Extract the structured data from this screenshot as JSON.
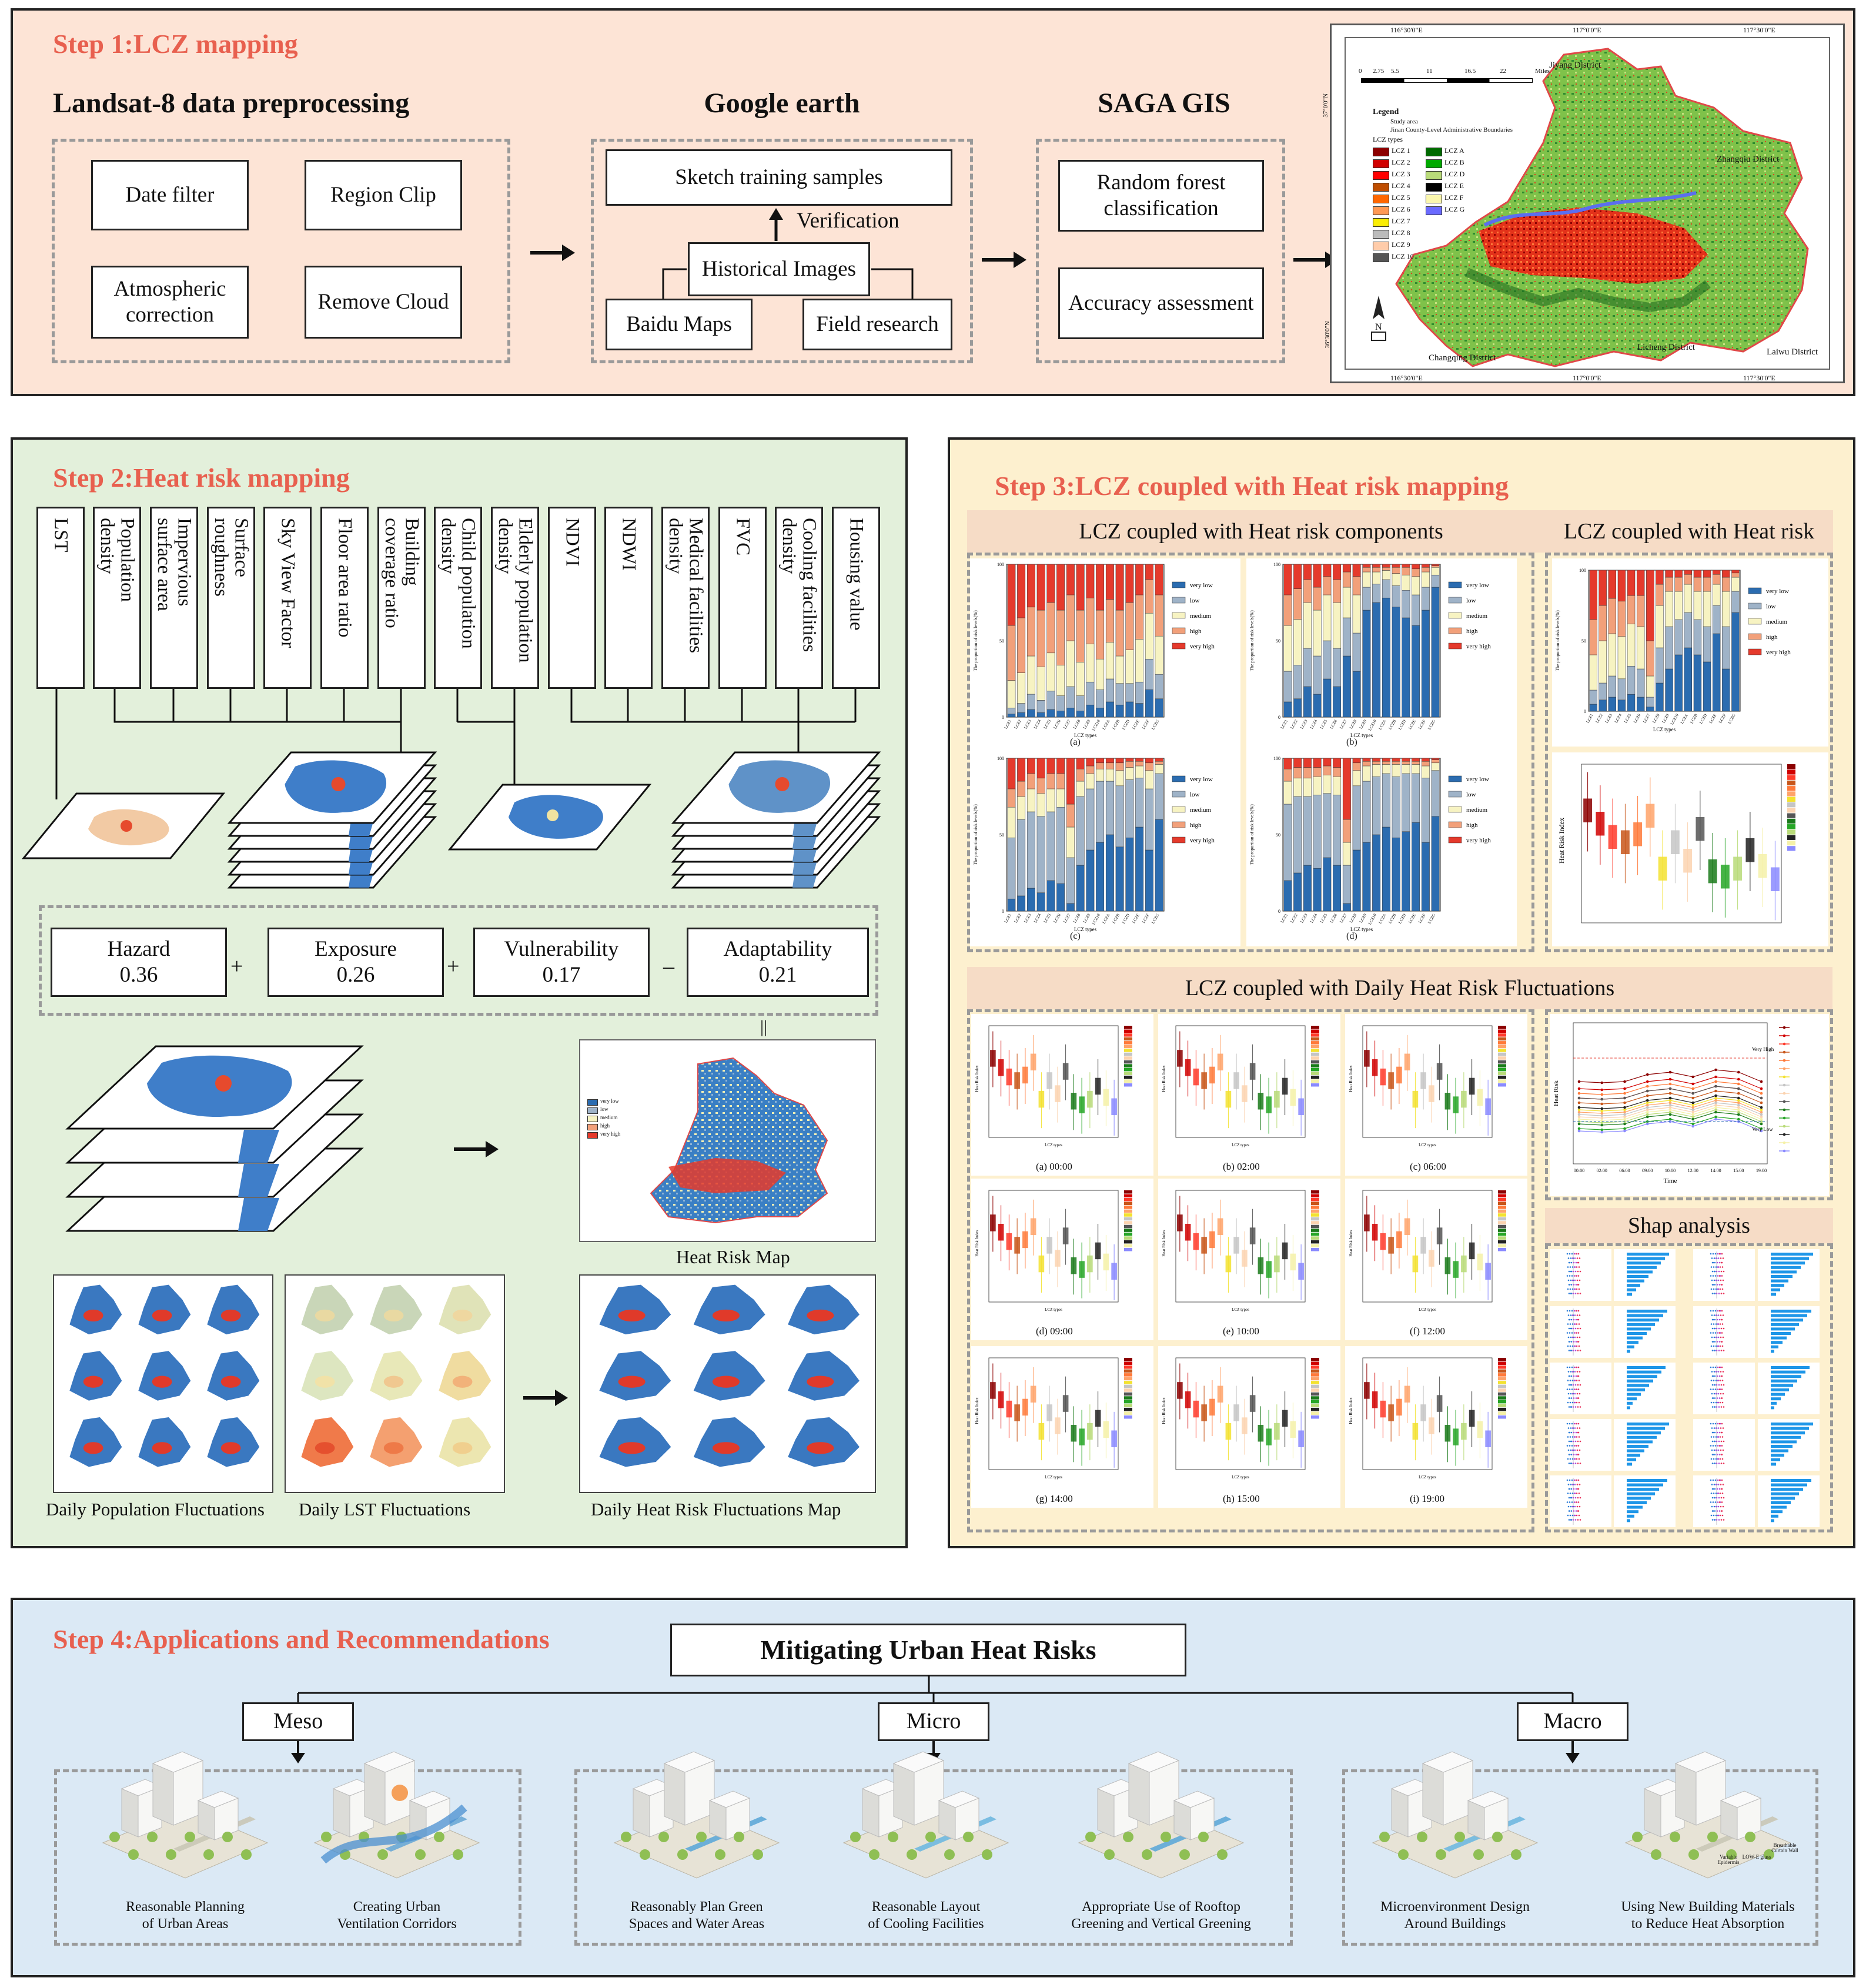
{
  "step1": {
    "title": "Step 1:LCZ mapping",
    "landsat": {
      "header": "Landsat-8 data preprocessing",
      "date_filter": "Date filter",
      "region_clip": "Region Clip",
      "atm": "Atmospheric correction",
      "cloud": "Remove Cloud"
    },
    "google": {
      "header": "Google earth",
      "sketch": "Sketch training samples",
      "verification": "Verification",
      "historical": "Historical Images",
      "baidu": "Baidu Maps",
      "field": "Field research"
    },
    "saga": {
      "header": "SAGA GIS",
      "rf": "Random forest classification",
      "accuracy": "Accuracy assessment"
    },
    "map": {
      "coords": [
        "116°30'0\"E",
        "117°0'0\"E",
        "117°30'0\"E"
      ],
      "coords_side": [
        "37°0'0\"N",
        "36°30'0\"N"
      ],
      "legend_title": "Legend",
      "legend_lines": [
        "Study area",
        "Jinan County-Level Administrative Boundaries"
      ],
      "lcz_title": "LCZ types",
      "lcz_left": [
        "LCZ 1",
        "LCZ 2",
        "LCZ 3",
        "LCZ 4",
        "LCZ 5",
        "LCZ 6",
        "LCZ 7",
        "LCZ 8",
        "LCZ 9",
        "LCZ 10"
      ],
      "lcz_right": [
        "LCZ A",
        "LCZ B",
        "LCZ D",
        "LCZ E",
        "LCZ F",
        "LCZ G"
      ],
      "lcz_left_colors": [
        "#8c0000",
        "#d10000",
        "#ff0000",
        "#bf4d00",
        "#ff6600",
        "#ff9955",
        "#faee05",
        "#bcbcbc",
        "#ffccaa",
        "#555555"
      ],
      "lcz_right_colors": [
        "#006a00",
        "#00aa00",
        "#b9db79",
        "#000000",
        "#fbf7ae",
        "#6a6aff"
      ],
      "districts": [
        "Jiyang District",
        "Zhangqiu District",
        "Licheng District",
        "Changqing District",
        "Laiwu District"
      ],
      "scale": [
        "0",
        "2.75",
        "5.5",
        "11",
        "16.5",
        "22"
      ],
      "scale_unit": "Miles"
    }
  },
  "step2": {
    "title": "Step 2:Heat risk mapping",
    "indicators": [
      "LST",
      "Population\ndensity",
      "Impervious\nsurface area",
      "Surface\nroughness",
      "Sky View Factor",
      "Floor area ratio",
      "Building\ncoverage ratio",
      "Child population\ndensity",
      "Elderly population\ndensity",
      "NDVI",
      "NDWI",
      "Medical facilities\ndensity",
      "FVC",
      "Cooling facilities\ndensity",
      "Housing value"
    ],
    "components": [
      {
        "name": "Hazard",
        "weight": "0.36"
      },
      {
        "name": "Exposure",
        "weight": "0.26"
      },
      {
        "name": "Vulnerability",
        "weight": "0.17"
      },
      {
        "name": "Adaptability",
        "weight": "0.21"
      }
    ],
    "ops": [
      "+",
      "+",
      "–"
    ],
    "equals": "||",
    "heat_risk_map": "Heat Risk Map",
    "pop_fluct": "Daily Population Fluctuations",
    "lst_fluct": "Daily LST Fluctuations",
    "heat_fluct": "Daily Heat Risk Fluctuations Map"
  },
  "step3": {
    "title": "Step 3:LCZ coupled with Heat risk mapping",
    "comp_header": "LCZ coupled with Heat risk components",
    "risk_header": "LCZ coupled with Heat risk",
    "daily_header": "LCZ coupled with  Daily Heat Risk Fluctuations",
    "shap_header": "Shap analysis",
    "legend_levels": [
      "very low",
      "low",
      "medium",
      "high",
      "very high"
    ],
    "level_colors": [
      "#2b6cb0",
      "#9fb3c8",
      "#f7f3c2",
      "#f2a07a",
      "#e53a2c"
    ],
    "ylabel": "The proportion of risk levels(%)",
    "xlabel": "LCZ types",
    "panel_caps": [
      "(a)",
      "(b)",
      "(c)",
      "(d)"
    ],
    "daily_caps": [
      "(a) 00:00",
      "(b) 02:00",
      "(c) 06:00",
      "(d) 09:00",
      "(e) 10:00",
      "(f) 12:00",
      "(g) 14:00",
      "(h) 15:00",
      "(i) 19:00"
    ],
    "box_ylabel": "Heat Risk Index",
    "line_ylabel": "Heat Risk",
    "line_xlabel": "Time",
    "very_high": "Very High",
    "very_low": "Very Low",
    "time_ticks": [
      "00:00",
      "02:00",
      "06:00",
      "09:00",
      "10:00",
      "12:00",
      "14:00",
      "15:00",
      "19:00"
    ]
  },
  "chart_data": [
    {
      "type": "bar",
      "title": "(a)",
      "stacked": true,
      "xlabel": "LCZ types",
      "ylabel": "The proportion of risk levels(%)",
      "ylim": [
        0,
        100
      ],
      "categories": [
        "LCZ1",
        "LCZ2",
        "LCZ3",
        "LCZ4",
        "LCZ5",
        "LCZ6",
        "LCZ7",
        "LCZ8",
        "LCZ9",
        "LCZ10",
        "LCZA",
        "LCZB",
        "LCZD",
        "LCZE",
        "LCZF",
        "LCZG"
      ],
      "series": [
        {
          "name": "very low",
          "values": [
            2,
            3,
            5,
            3,
            5,
            4,
            6,
            4,
            8,
            6,
            10,
            8,
            10,
            9,
            18,
            12
          ]
        },
        {
          "name": "low",
          "values": [
            4,
            6,
            10,
            8,
            12,
            10,
            14,
            10,
            15,
            12,
            15,
            14,
            12,
            14,
            20,
            16
          ]
        },
        {
          "name": "medium",
          "values": [
            18,
            20,
            25,
            22,
            25,
            20,
            30,
            22,
            25,
            20,
            24,
            18,
            22,
            28,
            30,
            25
          ]
        },
        {
          "name": "high",
          "values": [
            36,
            36,
            32,
            37,
            33,
            36,
            30,
            34,
            30,
            32,
            28,
            30,
            31,
            29,
            22,
            27
          ]
        },
        {
          "name": "very high",
          "values": [
            40,
            35,
            28,
            30,
            25,
            30,
            20,
            30,
            22,
            30,
            23,
            30,
            25,
            20,
            10,
            20
          ]
        }
      ]
    },
    {
      "type": "bar",
      "title": "(b)",
      "stacked": true,
      "xlabel": "LCZ types",
      "ylabel": "The proportion of risk levels(%)",
      "ylim": [
        0,
        100
      ],
      "categories": [
        "LCZ1",
        "LCZ2",
        "LCZ3",
        "LCZ4",
        "LCZ5",
        "LCZ6",
        "LCZ7",
        "LCZ8",
        "LCZ9",
        "LCZ10",
        "LCZA",
        "LCZB",
        "LCZD",
        "LCZE",
        "LCZF",
        "LCZG"
      ],
      "series": [
        {
          "name": "very low",
          "values": [
            10,
            12,
            20,
            15,
            25,
            20,
            40,
            30,
            70,
            75,
            78,
            72,
            65,
            60,
            70,
            85
          ]
        },
        {
          "name": "low",
          "values": [
            20,
            22,
            25,
            25,
            25,
            25,
            25,
            25,
            15,
            12,
            12,
            14,
            18,
            20,
            15,
            8
          ]
        },
        {
          "name": "medium",
          "values": [
            30,
            30,
            30,
            30,
            30,
            30,
            20,
            25,
            10,
            8,
            6,
            8,
            10,
            12,
            10,
            5
          ]
        },
        {
          "name": "high",
          "values": [
            20,
            20,
            15,
            15,
            12,
            15,
            10,
            12,
            3,
            3,
            2,
            4,
            5,
            5,
            3,
            1
          ]
        },
        {
          "name": "very high",
          "values": [
            20,
            16,
            10,
            15,
            8,
            10,
            5,
            8,
            2,
            2,
            2,
            2,
            2,
            3,
            2,
            1
          ]
        }
      ]
    },
    {
      "type": "bar",
      "title": "(c)",
      "stacked": true,
      "xlabel": "LCZ types",
      "ylabel": "The proportion of risk levels(%)",
      "ylim": [
        0,
        100
      ],
      "categories": [
        "LCZ1",
        "LCZ2",
        "LCZ3",
        "LCZ4",
        "LCZ5",
        "LCZ6",
        "LCZ7",
        "LCZ8",
        "LCZ9",
        "LCZ10",
        "LCZA",
        "LCZB",
        "LCZD",
        "LCZE",
        "LCZF",
        "LCZG"
      ],
      "series": [
        {
          "name": "very low",
          "values": [
            8,
            10,
            15,
            12,
            20,
            18,
            5,
            30,
            40,
            45,
            50,
            42,
            48,
            55,
            40,
            60
          ]
        },
        {
          "name": "low",
          "values": [
            40,
            50,
            50,
            50,
            45,
            50,
            30,
            45,
            40,
            40,
            35,
            40,
            38,
            32,
            40,
            30
          ]
        },
        {
          "name": "medium",
          "values": [
            20,
            15,
            15,
            15,
            15,
            12,
            20,
            10,
            10,
            8,
            8,
            10,
            8,
            8,
            12,
            6
          ]
        },
        {
          "name": "high",
          "values": [
            12,
            10,
            10,
            10,
            10,
            10,
            15,
            8,
            5,
            4,
            4,
            5,
            4,
            3,
            5,
            2
          ]
        },
        {
          "name": "very high",
          "values": [
            20,
            15,
            10,
            13,
            10,
            10,
            30,
            7,
            5,
            3,
            3,
            3,
            2,
            2,
            3,
            2
          ]
        }
      ]
    },
    {
      "type": "bar",
      "title": "(d)",
      "stacked": true,
      "xlabel": "LCZ types",
      "ylabel": "The proportion of risk levels(%)",
      "ylim": [
        0,
        100
      ],
      "categories": [
        "LCZ1",
        "LCZ2",
        "LCZ3",
        "LCZ4",
        "LCZ5",
        "LCZ6",
        "LCZ7",
        "LCZ8",
        "LCZ9",
        "LCZ10",
        "LCZA",
        "LCZB",
        "LCZD",
        "LCZE",
        "LCZF",
        "LCZG"
      ],
      "series": [
        {
          "name": "very low",
          "values": [
            20,
            25,
            30,
            28,
            35,
            30,
            5,
            40,
            45,
            50,
            55,
            48,
            52,
            58,
            45,
            62
          ]
        },
        {
          "name": "low",
          "values": [
            50,
            50,
            45,
            48,
            42,
            46,
            25,
            42,
            40,
            38,
            35,
            40,
            38,
            32,
            42,
            30
          ]
        },
        {
          "name": "medium",
          "values": [
            15,
            12,
            12,
            12,
            12,
            12,
            15,
            10,
            10,
            8,
            6,
            8,
            6,
            6,
            8,
            5
          ]
        },
        {
          "name": "high",
          "values": [
            8,
            7,
            7,
            6,
            6,
            6,
            15,
            5,
            3,
            2,
            2,
            2,
            2,
            2,
            3,
            2
          ]
        },
        {
          "name": "very high",
          "values": [
            7,
            6,
            6,
            6,
            5,
            6,
            40,
            3,
            2,
            2,
            2,
            2,
            2,
            2,
            2,
            1
          ]
        }
      ]
    },
    {
      "type": "bar",
      "title": "LCZ coupled with Heat risk",
      "stacked": true,
      "xlabel": "LCZ types",
      "ylabel": "The proportion of risk levels(%)",
      "ylim": [
        0,
        100
      ],
      "categories": [
        "LCZ1",
        "LCZ2",
        "LCZ3",
        "LCZ4",
        "LCZ5",
        "LCZ6",
        "LCZ7",
        "LCZ8",
        "LCZ9",
        "LCZ10",
        "LCZA",
        "LCZB",
        "LCZD",
        "LCZE",
        "LCZF",
        "LCZG"
      ],
      "series": [
        {
          "name": "very low",
          "values": [
            5,
            8,
            10,
            8,
            12,
            10,
            3,
            20,
            30,
            40,
            45,
            40,
            35,
            55,
            30,
            70
          ]
        },
        {
          "name": "low",
          "values": [
            10,
            12,
            15,
            15,
            20,
            20,
            7,
            25,
            30,
            25,
            25,
            25,
            25,
            20,
            30,
            15
          ]
        },
        {
          "name": "medium",
          "values": [
            25,
            30,
            30,
            30,
            30,
            30,
            15,
            30,
            25,
            20,
            20,
            20,
            25,
            15,
            25,
            10
          ]
        },
        {
          "name": "high",
          "values": [
            25,
            25,
            25,
            25,
            20,
            22,
            25,
            15,
            10,
            10,
            7,
            10,
            10,
            7,
            10,
            3
          ]
        },
        {
          "name": "very high",
          "values": [
            35,
            25,
            20,
            22,
            18,
            18,
            50,
            10,
            5,
            5,
            3,
            5,
            5,
            3,
            5,
            2
          ]
        }
      ]
    }
  ],
  "step4": {
    "title": "Step 4:Applications and Recommendations",
    "root": "Mitigating Urban Heat Risks",
    "branches": [
      "Meso",
      "Micro",
      "Macro"
    ],
    "meso": [
      "Reasonable Planning\nof Urban Areas",
      "Creating Urban\nVentilation Corridors"
    ],
    "micro": [
      "Reasonably Plan Green\nSpaces and Water Areas",
      "Reasonable Layout\nof Cooling Facilities",
      "Appropriate Use of Rooftop\nGreening and Vertical Greening"
    ],
    "macro": [
      "Microenvironment Design\nAround Buildings",
      "Using New Building Materials\nto Reduce Heat Absorption"
    ],
    "macro_tags": [
      "Variable Epidermis",
      "LOW-E glass",
      "Breathable Curtain Wall"
    ]
  }
}
